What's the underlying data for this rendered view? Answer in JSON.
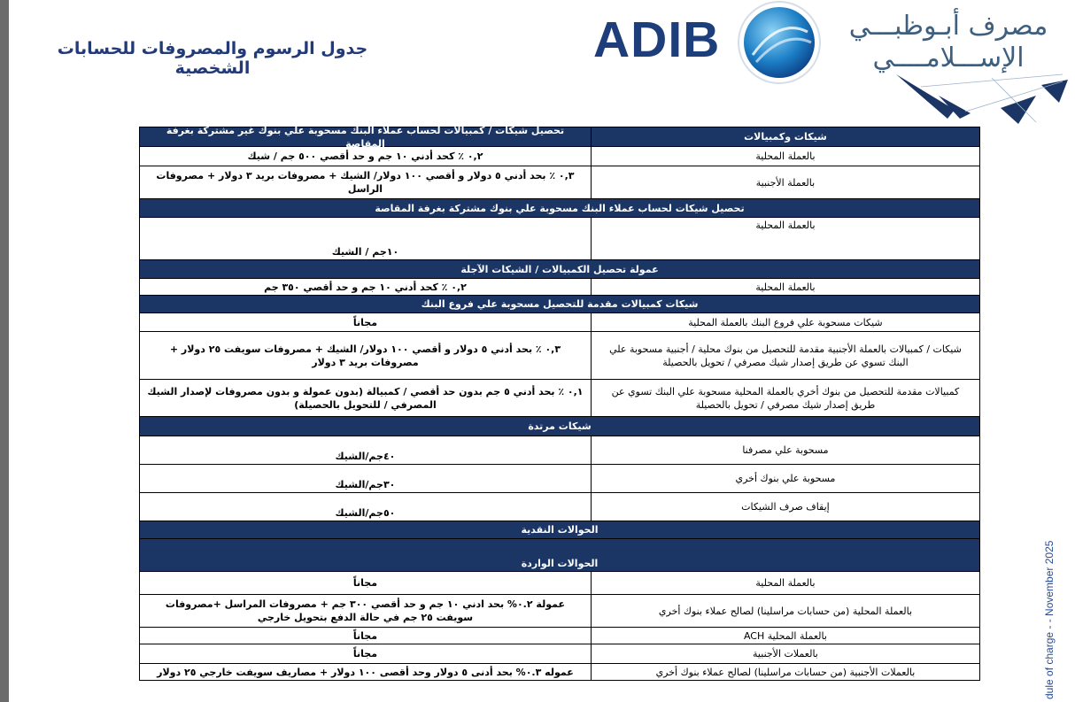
{
  "header": {
    "title": "جدول الرسوم والمصروفات للحسابات الشخصية",
    "logo_text": "ADIB",
    "logo_arabic": [
      "مصرف أبـوظبـــي",
      "الإســـلامــــي"
    ]
  },
  "side_note": "dule of charge - - November 2025",
  "table": {
    "rows": [
      {
        "label": "شيكات وكمبيالات",
        "value": "تحصيل شيكات / كمبيالات لحساب عملاء البنك مسحوبة علي بنوك غير مشتركة بغرفة المقاصة"
      },
      {
        "label": "بالعملة المحلية",
        "value": "٠,٢ ٪ كحد أدني ١٠ جم و حد أقصي ٥٠٠ جم / شيك"
      },
      {
        "label": "بالعملة الأجنبية",
        "value": "٠,٣ ٪  بحد أدني ٥ دولار و أقصي ١٠٠ دولار/ الشيك + مصروفات بريد ٣ دولار + مصروفات الراسل"
      },
      {
        "section": "تحصيل شيكات لحساب عملاء البنك مسحوبة علي بنوك مشتركة بغرفة المقاصة"
      },
      {
        "label": "بالعملة المحلية",
        "value": "١٠جم / الشيك"
      },
      {
        "section": "عمولة تحصيل الكمبيالات / الشيكات الآجلة"
      },
      {
        "label": "بالعملة المحلية",
        "value": "٠,٢ ٪ كحد أدني ١٠ جم و حد أقصي ٣٥٠ جم"
      },
      {
        "section": "شيكات كمبيالات مقدمة للتحصيل مسحوبة علي فروع البنك"
      },
      {
        "label": "شيكات مسحوبة علي فروع البنك بالعملة المحلية",
        "value": "مجاناً"
      },
      {
        "label": "شيكات / كمبيالات بالعملة الأجنبية  مقدمة للتحصيل من بنوك محلية / أجنبية مسحوبة علي البنك تسوي عن طريق إصدار شيك مصرفي / تحويل بالحصيلة",
        "value": "٠,٣ ٪  بحد أدني ٥ دولار و أقصي ١٠٠ دولار/ الشيك + مصروفات  سويفت ٢٥ دولار + مصروفات بريد ٣ دولار"
      },
      {
        "label": "كمبيالات مقدمة للتحصيل من بنوك أخري بالعملة المحلية مسحوبة علي البنك تسوي عن طريق إصدار شيك مصرفي / تحويل بالحصيلة",
        "value": "٠,١ ٪  بحد أدني ٥ جم بدون حد أقصي / كمبيالة (بدون عمولة و بدون مصروفات لإصدار الشيك المصرفي / للتحويل بالحصيلة)"
      },
      {
        "section": "شيكات مرتدة"
      },
      {
        "label": "مسحوبة علي مصرفنا",
        "value": "٤٠جم/الشيك"
      },
      {
        "label": "مسحوبة علي بنوك أخري",
        "value": "٣٠جم/الشيك"
      },
      {
        "label": "إيقاف صرف الشيكات",
        "value": "٥٠جم/الشيك"
      },
      {
        "section": "الحوالات النقدية"
      },
      {
        "section": "الحوالات الواردة"
      },
      {
        "label": "بالعملة المحلية",
        "value": "مجاناً"
      },
      {
        "label": "بالعملة المحلية (من حسابات مراسلينا) لصالح عملاء بنوك أخري",
        "value": "عمولة ٠.٢% بحد ادني ١٠ جم و حد أقصي ٣٠٠ جم + مصروفات المراسل  +مصروفات سويفت ٢٥ جم في حالة الدفع بتحويل خارجي"
      },
      {
        "label": "بالعملة المحلية  ACH",
        "value": "مجاناً"
      },
      {
        "label": "بالعملات الأجنبية",
        "value": "مجاناً"
      },
      {
        "label": "بالعملات الأجنبية (من حسابات مراسلينا) لصالح عملاء بنوك أخري",
        "value": "عموله ٠.٣% بحد أدنى ٥ دولار وحد أقصى ١٠٠ دولار + مصاريف سويفت خارجي ٢٥ دولار"
      }
    ]
  }
}
